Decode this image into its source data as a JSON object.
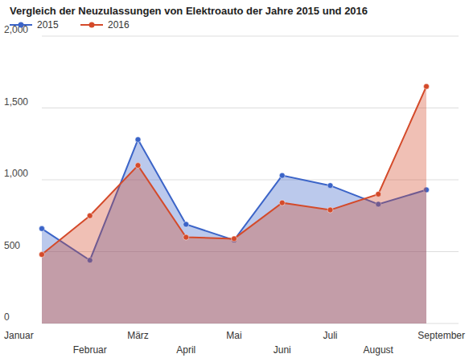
{
  "chart_data": {
    "type": "area",
    "title": "Vergleich der Neuzulassungen von Elektroauto der Jahre 2015 und 2016",
    "categories": [
      "Januar",
      "Februar",
      "März",
      "April",
      "Mai",
      "Juni",
      "Juli",
      "August",
      "September"
    ],
    "series": [
      {
        "name": "2015",
        "color": "#3b64c8",
        "marker": "circle",
        "values": [
          660,
          440,
          1280,
          690,
          580,
          1030,
          960,
          830,
          930
        ]
      },
      {
        "name": "2016",
        "color": "#d44a2a",
        "marker": "circle",
        "values": [
          480,
          750,
          1100,
          600,
          590,
          840,
          790,
          900,
          1650
        ]
      }
    ],
    "ylim": [
      0,
      2000
    ],
    "yticks": [
      0,
      500,
      {
        "value": 1000,
        "label": "1,000"
      },
      {
        "value": 1500,
        "label": "1,500"
      },
      {
        "value": 2000,
        "label": "2,000"
      }
    ],
    "grid": true,
    "legend": "top-left"
  }
}
